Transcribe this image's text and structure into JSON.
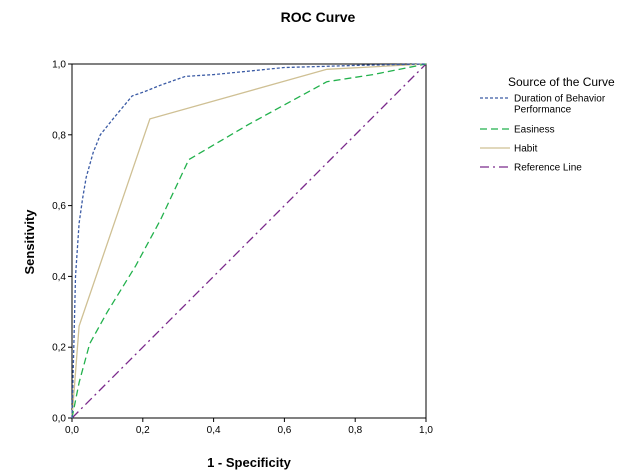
{
  "chart_data": {
    "type": "line",
    "title": "ROC Curve",
    "xlabel": "1 - Specificity",
    "ylabel": "Sensitivity",
    "xlim": [
      0,
      1
    ],
    "ylim": [
      0,
      1
    ],
    "xticks": [
      "0,0",
      "0,2",
      "0,4",
      "0,6",
      "0,8",
      "1,0"
    ],
    "yticks": [
      "0,0",
      "0,2",
      "0,4",
      "0,6",
      "0,8",
      "1,0"
    ],
    "grid": false,
    "legend_position": "right",
    "legend_title": "Source of the Curve",
    "series": [
      {
        "name": [
          "Duration of Behavior",
          "Performance"
        ],
        "color": "#3b5ba5",
        "dash": "3,2",
        "points": [
          [
            0,
            0
          ],
          [
            0.005,
            0.2
          ],
          [
            0.01,
            0.4
          ],
          [
            0.02,
            0.55
          ],
          [
            0.03,
            0.62
          ],
          [
            0.04,
            0.68
          ],
          [
            0.06,
            0.75
          ],
          [
            0.08,
            0.8
          ],
          [
            0.12,
            0.85
          ],
          [
            0.17,
            0.91
          ],
          [
            0.2,
            0.92
          ],
          [
            0.25,
            0.94
          ],
          [
            0.32,
            0.965
          ],
          [
            0.4,
            0.97
          ],
          [
            0.5,
            0.98
          ],
          [
            0.6,
            0.99
          ],
          [
            0.7,
            0.993
          ],
          [
            0.8,
            0.996
          ],
          [
            0.9,
            0.998
          ],
          [
            1,
            1
          ]
        ]
      },
      {
        "name": [
          "Easiness"
        ],
        "color": "#22b14c",
        "dash": "7,4",
        "points": [
          [
            0,
            0
          ],
          [
            0.02,
            0.1
          ],
          [
            0.05,
            0.21
          ],
          [
            0.1,
            0.3
          ],
          [
            0.18,
            0.43
          ],
          [
            0.25,
            0.56
          ],
          [
            0.33,
            0.73
          ],
          [
            0.5,
            0.83
          ],
          [
            0.72,
            0.95
          ],
          [
            0.85,
            0.97
          ],
          [
            1,
            1
          ]
        ]
      },
      {
        "name": [
          "Habit"
        ],
        "color": "#cfc094",
        "dash": "",
        "points": [
          [
            0,
            0
          ],
          [
            0.02,
            0.26
          ],
          [
            0.22,
            0.845
          ],
          [
            0.72,
            0.985
          ],
          [
            1,
            1
          ]
        ]
      },
      {
        "name": [
          "Reference Line"
        ],
        "color": "#7b2a8c",
        "dash": "9,4,2,4",
        "points": [
          [
            0,
            0
          ],
          [
            1,
            1
          ]
        ]
      }
    ]
  }
}
